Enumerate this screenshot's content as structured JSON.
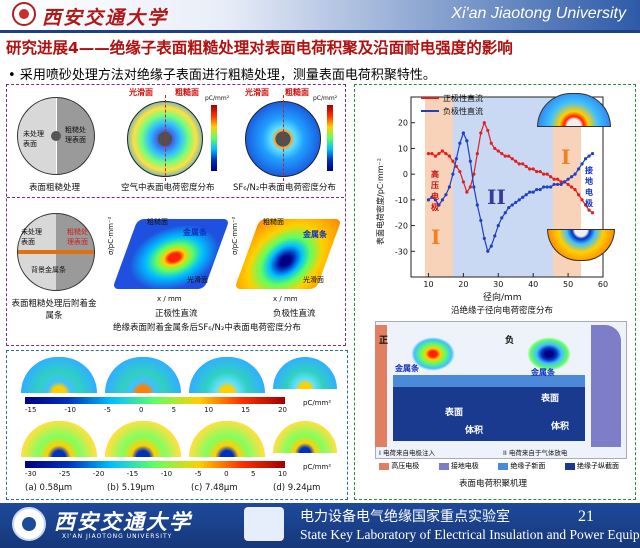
{
  "header": {
    "logo_text": "西安交通大学",
    "university_en": "Xi'an Jiaotong University"
  },
  "slide": {
    "title": "研究进展4——绝缘子表面粗糙处理对表面电荷积聚及沿面耐电强度的影响",
    "bullet": "采用喷砂处理方法对绝缘子表面进行粗糙处理，测量表面电荷积聚特性。"
  },
  "left_panel": {
    "disk_left_label": "未处理表面",
    "disk_right_label": "粗糙处理表面",
    "caption_disk": "表面粗糙处理",
    "caption_air": "空气中表面电荷密度分布",
    "caption_sf6": "SF₆/N₂中表面电荷密度分布",
    "label_smooth": "光滑面",
    "label_rough": "粗糙面",
    "unit_pc": "pC/mm²",
    "colorbar_air": [
      "15",
      "10",
      "5",
      "0",
      "-5",
      "-10",
      "-15"
    ],
    "colorbar_sf6": [
      "20",
      "15",
      "10",
      "5",
      "0",
      "-5"
    ],
    "disk2_left_label": "未处理表面",
    "disk2_right_label": "粗糙处理表面",
    "disk2_metal": "背景金属条",
    "caption_disk2": "表面粗糙处理后附着金属条",
    "caption_pos": "正极性直流",
    "caption_neg": "负极性直流",
    "caption_metal": "绝缘表面附着金属条后SF₆/N₂中表面电荷密度分布",
    "z_label": "σ/pC·mm⁻²",
    "xy_label": "x / mm",
    "rough_short": "粗糙面",
    "smooth_short": "光滑面",
    "metal_short": "金属条"
  },
  "left_bottom": {
    "row1_ticks": [
      "-15",
      "-10",
      "-5",
      "0",
      "5",
      "10",
      "15",
      "20"
    ],
    "row2_ticks": [
      "-30",
      "-25",
      "-20",
      "-15",
      "-10",
      "-5",
      "0",
      "5",
      "10"
    ],
    "unit": "pC/mm²",
    "subfigs": [
      {
        "label": "(a) 0.58μm"
      },
      {
        "label": "(b) 5.19μm"
      },
      {
        "label": "(c) 7.48μm"
      },
      {
        "label": "(d) 9.24μm"
      }
    ]
  },
  "right_panel": {
    "legend_pos": "正极性直流",
    "legend_neg": "负极性直流",
    "ylabel": "表面电荷密度/pC·mm⁻²",
    "xlabel": "径向/mm",
    "caption_chart": "沿绝缘子径向电荷密度分布",
    "region_hv": "高压电极",
    "region_gnd": "接地电极",
    "region_I_left": "I",
    "region_II": "II",
    "region_I_right": "I",
    "caption_mech": "表面电荷积聚机理",
    "mech_pos": "正",
    "mech_neg": "负",
    "mech_metal_left": "金属条",
    "mech_metal_right": "金属条",
    "mech_surface": "表面",
    "mech_volume": "体积",
    "mech_I_desc": "I 电荷来自电极注入",
    "mech_II_desc": "II 电荷来自于气体放电",
    "legend_items": [
      "高压电极",
      "接地电极",
      "绝缘子新面",
      "绝缘子纵截面"
    ]
  },
  "chart_data": {
    "type": "line",
    "xlabel": "径向/mm",
    "ylabel": "表面电荷密度/pC·mm⁻²",
    "xlim": [
      5,
      60
    ],
    "ylim": [
      -40,
      30
    ],
    "xticks": [
      10,
      20,
      30,
      40,
      50,
      60
    ],
    "yticks": [
      -30,
      -20,
      -10,
      0,
      10,
      20
    ],
    "series": [
      {
        "name": "正极性直流",
        "color": "#e02020",
        "x": [
          10,
          11,
          12,
          13,
          14,
          15,
          16,
          17,
          18,
          19,
          20,
          21,
          22,
          23,
          24,
          25,
          26,
          27,
          28,
          29,
          30,
          31,
          32,
          33,
          34,
          35,
          36,
          37,
          38,
          39,
          40,
          41,
          42,
          43,
          44,
          45,
          46,
          47,
          48,
          49,
          50,
          51,
          52,
          53,
          54,
          55,
          56,
          57
        ],
        "y": [
          8,
          8,
          7,
          8,
          9,
          8,
          7,
          5,
          3,
          1,
          -3,
          -7,
          -5,
          0,
          8,
          16,
          20,
          17,
          12,
          10,
          9,
          8,
          7,
          7,
          6,
          5,
          4,
          4,
          3,
          2,
          2,
          1,
          1,
          0,
          0,
          -1,
          -2,
          -2,
          -3,
          -3,
          -4,
          -5,
          -6,
          -8,
          -10,
          -12,
          -14,
          -15
        ]
      },
      {
        "name": "负极性直流",
        "color": "#2040c0",
        "x": [
          10,
          11,
          12,
          13,
          14,
          15,
          16,
          17,
          18,
          19,
          20,
          21,
          22,
          23,
          24,
          25,
          26,
          27,
          28,
          29,
          30,
          31,
          32,
          33,
          34,
          35,
          36,
          37,
          38,
          39,
          40,
          41,
          42,
          43,
          44,
          45,
          46,
          47,
          48,
          49,
          50,
          51,
          52,
          53,
          54,
          55,
          56,
          57
        ],
        "y": [
          -10,
          -9,
          -10,
          -12,
          -10,
          -8,
          -5,
          0,
          6,
          12,
          16,
          13,
          5,
          -5,
          -12,
          -18,
          -25,
          -30,
          -28,
          -24,
          -20,
          -17,
          -15,
          -13,
          -12,
          -11,
          -10,
          -9,
          -8,
          -7,
          -7,
          -6,
          -6,
          -5,
          -5,
          -5,
          -4,
          -4,
          -4,
          -3,
          -2,
          -1,
          0,
          2,
          4,
          6,
          7,
          8
        ]
      }
    ],
    "legend": "top-left",
    "grid": false
  },
  "footer": {
    "logo_cn": "西安交通大学",
    "logo_en": "XI'AN JIAOTONG UNIVERSITY",
    "lab_cn": "电力设备电气绝缘国家重点实验室",
    "lab_en": "State Key Laboratory of Electrical Insulation and Power Equipment",
    "page_number": "21"
  }
}
